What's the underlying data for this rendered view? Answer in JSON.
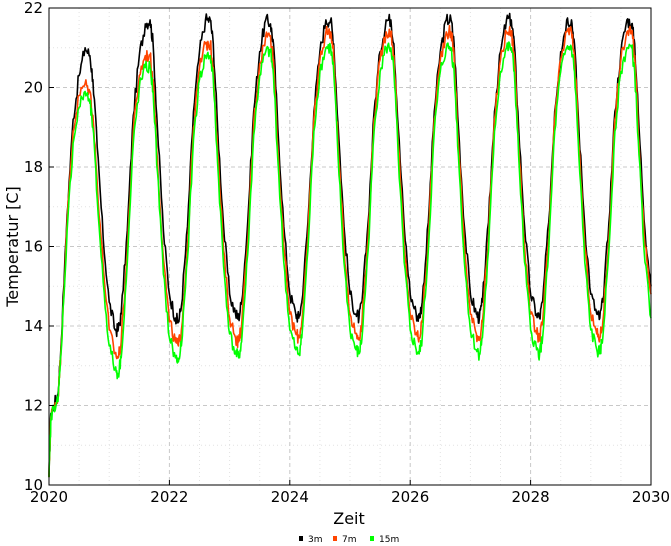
{
  "chart_data": {
    "type": "line",
    "title": "",
    "xlabel": "Zeit",
    "ylabel": "Temperatur [C]",
    "xlim": [
      2020,
      2030
    ],
    "ylim": [
      10,
      22
    ],
    "x_ticks": [
      "2020",
      "2022",
      "2024",
      "2026",
      "2028",
      "2030"
    ],
    "y_ticks": [
      "10",
      "12",
      "14",
      "16",
      "18",
      "20",
      "22"
    ],
    "grid": true,
    "legend_position": "bottom-center",
    "series": [
      {
        "name": "3m",
        "color": "#000000",
        "x": [
          2020.0,
          2020.03,
          2020.08,
          2020.15,
          2020.2,
          2020.3,
          2020.4,
          2020.5,
          2020.6,
          2020.68,
          2020.73,
          2020.8,
          2020.9,
          2021.0,
          2021.1,
          2021.15,
          2021.2,
          2021.3,
          2021.4,
          2021.5,
          2021.6,
          2021.68,
          2021.73,
          2021.8,
          2021.9,
          2022.0,
          2022.1,
          2022.15,
          2022.2,
          2022.3,
          2022.4,
          2022.5,
          2022.6,
          2022.68,
          2022.73,
          2022.8,
          2022.9,
          2023.0,
          2023.1,
          2023.15,
          2023.2,
          2023.3,
          2023.4,
          2023.5,
          2023.6,
          2023.68,
          2023.73,
          2023.8,
          2023.9,
          2024.0,
          2024.1,
          2024.15,
          2024.2,
          2024.3,
          2024.4,
          2024.5,
          2024.6,
          2024.68,
          2024.73,
          2024.8,
          2024.9,
          2025.0,
          2025.1,
          2025.15,
          2025.2,
          2025.3,
          2025.4,
          2025.5,
          2025.6,
          2025.68,
          2025.73,
          2025.8,
          2025.9,
          2026.0,
          2026.1,
          2026.15,
          2026.2,
          2026.3,
          2026.4,
          2026.5,
          2026.6,
          2026.68,
          2026.73,
          2026.8,
          2026.9,
          2027.0,
          2027.1,
          2027.15,
          2027.2,
          2027.3,
          2027.4,
          2027.5,
          2027.6,
          2027.68,
          2027.73,
          2027.8,
          2027.9,
          2028.0,
          2028.1,
          2028.15,
          2028.2,
          2028.3,
          2028.4,
          2028.5,
          2028.6,
          2028.68,
          2028.73,
          2028.8,
          2028.9,
          2029.0,
          2029.1,
          2029.15,
          2029.2,
          2029.3,
          2029.4,
          2029.5,
          2029.6,
          2029.68,
          2029.73,
          2029.8,
          2029.9,
          2030.0
        ],
        "y": [
          10.2,
          11.8,
          12.0,
          12.3,
          13.5,
          16.8,
          19.2,
          20.3,
          21.0,
          20.8,
          20.2,
          18.5,
          16.2,
          14.6,
          13.9,
          13.9,
          14.3,
          16.4,
          19.3,
          20.8,
          21.6,
          21.7,
          21.1,
          19.0,
          16.4,
          14.8,
          14.2,
          14.1,
          14.5,
          16.5,
          19.4,
          20.9,
          21.7,
          21.7,
          21.1,
          19.0,
          16.5,
          14.8,
          14.3,
          14.2,
          14.6,
          16.6,
          19.4,
          20.9,
          21.7,
          21.6,
          21.1,
          19.0,
          16.5,
          14.8,
          14.3,
          14.2,
          14.6,
          16.6,
          19.4,
          20.9,
          21.7,
          21.7,
          21.1,
          19.1,
          16.5,
          14.8,
          14.3,
          14.2,
          14.6,
          16.6,
          19.4,
          20.9,
          21.7,
          21.7,
          21.1,
          19.0,
          16.5,
          14.8,
          14.3,
          14.2,
          14.6,
          16.6,
          19.4,
          20.9,
          21.7,
          21.7,
          21.1,
          19.0,
          16.5,
          14.8,
          14.3,
          14.2,
          14.6,
          16.6,
          19.4,
          20.9,
          21.7,
          21.7,
          21.1,
          19.0,
          16.5,
          14.8,
          14.3,
          14.2,
          14.6,
          16.6,
          19.4,
          20.9,
          21.7,
          21.7,
          21.1,
          19.0,
          16.5,
          14.8,
          14.3,
          14.2,
          14.6,
          16.6,
          19.4,
          20.9,
          21.7,
          21.6,
          21.1,
          19.0,
          16.4,
          15.0
        ]
      },
      {
        "name": "7m",
        "color": "#ff4500",
        "x": [
          2020.0,
          2020.03,
          2020.08,
          2020.15,
          2020.2,
          2020.3,
          2020.4,
          2020.5,
          2020.6,
          2020.68,
          2020.73,
          2020.8,
          2020.9,
          2021.0,
          2021.1,
          2021.15,
          2021.2,
          2021.3,
          2021.4,
          2021.5,
          2021.6,
          2021.68,
          2021.73,
          2021.8,
          2021.9,
          2022.0,
          2022.1,
          2022.15,
          2022.2,
          2022.3,
          2022.4,
          2022.5,
          2022.6,
          2022.68,
          2022.73,
          2022.8,
          2022.9,
          2023.0,
          2023.1,
          2023.15,
          2023.2,
          2023.3,
          2023.4,
          2023.5,
          2023.6,
          2023.68,
          2023.73,
          2023.8,
          2023.9,
          2024.0,
          2024.1,
          2024.15,
          2024.2,
          2024.3,
          2024.4,
          2024.5,
          2024.6,
          2024.68,
          2024.73,
          2024.8,
          2024.9,
          2025.0,
          2025.1,
          2025.15,
          2025.2,
          2025.3,
          2025.4,
          2025.5,
          2025.6,
          2025.68,
          2025.73,
          2025.8,
          2025.9,
          2026.0,
          2026.1,
          2026.15,
          2026.2,
          2026.3,
          2026.4,
          2026.5,
          2026.6,
          2026.68,
          2026.73,
          2026.8,
          2026.9,
          2027.0,
          2027.1,
          2027.15,
          2027.2,
          2027.3,
          2027.4,
          2027.5,
          2027.6,
          2027.68,
          2027.73,
          2027.8,
          2027.9,
          2028.0,
          2028.1,
          2028.15,
          2028.2,
          2028.3,
          2028.4,
          2028.5,
          2028.6,
          2028.68,
          2028.73,
          2028.8,
          2028.9,
          2029.0,
          2029.1,
          2029.15,
          2029.2,
          2029.3,
          2029.4,
          2029.5,
          2029.6,
          2029.68,
          2029.73,
          2029.8,
          2029.9,
          2030.0
        ],
        "y": [
          10.2,
          11.7,
          12.0,
          12.2,
          13.4,
          16.6,
          18.9,
          19.8,
          20.1,
          19.9,
          19.3,
          17.6,
          15.5,
          13.9,
          13.3,
          13.2,
          13.6,
          15.9,
          18.9,
          20.3,
          20.8,
          20.8,
          20.2,
          18.2,
          15.7,
          14.1,
          13.6,
          13.5,
          13.9,
          16.0,
          19.0,
          20.5,
          21.1,
          21.1,
          20.5,
          18.4,
          15.9,
          14.2,
          13.7,
          13.6,
          14.0,
          16.1,
          19.1,
          20.6,
          21.3,
          21.3,
          20.7,
          18.5,
          16.0,
          14.3,
          13.8,
          13.7,
          14.1,
          16.2,
          19.2,
          20.7,
          21.4,
          21.4,
          20.8,
          18.6,
          16.0,
          14.3,
          13.8,
          13.7,
          14.1,
          16.2,
          19.2,
          20.7,
          21.4,
          21.4,
          20.8,
          18.6,
          16.0,
          14.3,
          13.8,
          13.7,
          14.1,
          16.2,
          19.2,
          20.7,
          21.4,
          21.4,
          20.8,
          18.6,
          16.0,
          14.3,
          13.8,
          13.7,
          14.1,
          16.2,
          19.2,
          20.7,
          21.4,
          21.4,
          20.8,
          18.6,
          16.0,
          14.3,
          13.8,
          13.7,
          14.1,
          16.2,
          19.2,
          20.7,
          21.4,
          21.4,
          20.8,
          18.6,
          16.0,
          14.3,
          13.8,
          13.7,
          14.1,
          16.2,
          19.2,
          20.7,
          21.4,
          21.4,
          20.8,
          18.6,
          16.0,
          14.8
        ]
      },
      {
        "name": "15m",
        "color": "#00ff00",
        "x": [
          2020.0,
          2020.03,
          2020.08,
          2020.15,
          2020.2,
          2020.3,
          2020.4,
          2020.5,
          2020.6,
          2020.68,
          2020.73,
          2020.8,
          2020.9,
          2021.0,
          2021.1,
          2021.15,
          2021.2,
          2021.3,
          2021.4,
          2021.5,
          2021.6,
          2021.68,
          2021.73,
          2021.8,
          2021.9,
          2022.0,
          2022.1,
          2022.15,
          2022.2,
          2022.3,
          2022.4,
          2022.5,
          2022.6,
          2022.68,
          2022.73,
          2022.8,
          2022.9,
          2023.0,
          2023.1,
          2023.15,
          2023.2,
          2023.3,
          2023.4,
          2023.5,
          2023.6,
          2023.68,
          2023.73,
          2023.8,
          2023.9,
          2024.0,
          2024.1,
          2024.15,
          2024.2,
          2024.3,
          2024.4,
          2024.5,
          2024.6,
          2024.68,
          2024.73,
          2024.8,
          2024.9,
          2025.0,
          2025.1,
          2025.15,
          2025.2,
          2025.3,
          2025.4,
          2025.5,
          2025.6,
          2025.68,
          2025.73,
          2025.8,
          2025.9,
          2026.0,
          2026.1,
          2026.15,
          2026.2,
          2026.3,
          2026.4,
          2026.5,
          2026.6,
          2026.68,
          2026.73,
          2026.8,
          2026.9,
          2027.0,
          2027.1,
          2027.15,
          2027.2,
          2027.3,
          2027.4,
          2027.5,
          2027.6,
          2027.68,
          2027.73,
          2027.8,
          2027.9,
          2028.0,
          2028.1,
          2028.15,
          2028.2,
          2028.3,
          2028.4,
          2028.5,
          2028.6,
          2028.68,
          2028.73,
          2028.8,
          2028.9,
          2029.0,
          2029.1,
          2029.15,
          2029.2,
          2029.3,
          2029.4,
          2029.5,
          2029.6,
          2029.68,
          2029.73,
          2029.8,
          2029.9,
          2030.0
        ],
        "y": [
          10.2,
          11.6,
          12.0,
          12.1,
          13.3,
          16.4,
          18.6,
          19.5,
          19.9,
          19.6,
          19.0,
          17.2,
          15.1,
          13.5,
          12.9,
          12.8,
          13.2,
          15.6,
          18.6,
          20.0,
          20.5,
          20.5,
          19.9,
          17.9,
          15.3,
          13.7,
          13.2,
          13.1,
          13.5,
          15.7,
          18.7,
          20.2,
          20.8,
          20.8,
          20.2,
          18.1,
          15.5,
          13.8,
          13.3,
          13.2,
          13.6,
          15.8,
          18.8,
          20.3,
          20.9,
          20.9,
          20.3,
          18.2,
          15.6,
          13.9,
          13.4,
          13.3,
          13.7,
          15.9,
          18.9,
          20.4,
          21.0,
          21.0,
          20.4,
          18.3,
          15.6,
          13.9,
          13.4,
          13.3,
          13.7,
          15.9,
          18.9,
          20.4,
          21.0,
          21.0,
          20.4,
          18.3,
          15.6,
          13.9,
          13.4,
          13.3,
          13.7,
          15.9,
          18.9,
          20.4,
          21.0,
          21.0,
          20.4,
          18.3,
          15.6,
          13.9,
          13.4,
          13.3,
          13.7,
          15.9,
          18.9,
          20.4,
          21.0,
          21.0,
          20.4,
          18.3,
          15.6,
          13.9,
          13.4,
          13.3,
          13.7,
          15.9,
          18.9,
          20.4,
          21.0,
          21.0,
          20.4,
          18.3,
          15.6,
          13.9,
          13.4,
          13.3,
          13.7,
          15.9,
          18.9,
          20.4,
          21.0,
          21.0,
          20.4,
          18.3,
          15.6,
          14.2
        ]
      }
    ]
  }
}
